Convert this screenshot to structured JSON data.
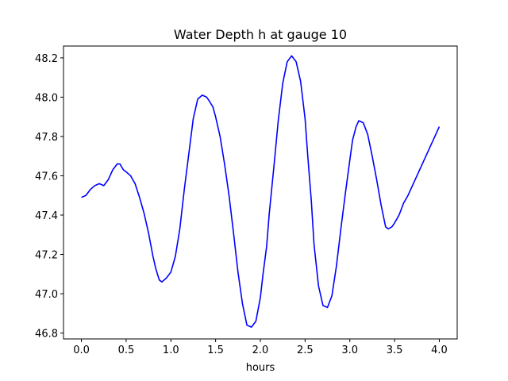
{
  "chart_data": {
    "type": "line",
    "title": "Water Depth h at gauge 10",
    "xlabel": "hours",
    "ylabel": "",
    "xlim": [
      -0.2,
      4.2
    ],
    "ylim": [
      46.77,
      48.26
    ],
    "xticks": [
      0.0,
      0.5,
      1.0,
      1.5,
      2.0,
      2.5,
      3.0,
      3.5,
      4.0
    ],
    "xtick_labels": [
      "0.0",
      "0.5",
      "1.0",
      "1.5",
      "2.0",
      "2.5",
      "3.0",
      "3.5",
      "4.0"
    ],
    "yticks": [
      46.8,
      47.0,
      47.2,
      47.4,
      47.6,
      47.8,
      48.0,
      48.2
    ],
    "ytick_labels": [
      "46.8",
      "47.0",
      "47.2",
      "47.4",
      "47.6",
      "47.8",
      "48.0",
      "48.2"
    ],
    "grid": false,
    "series": [
      {
        "color": "#0000ff",
        "x": [
          0.0,
          0.05,
          0.1,
          0.15,
          0.2,
          0.25,
          0.3,
          0.35,
          0.4,
          0.43,
          0.47,
          0.5,
          0.55,
          0.6,
          0.65,
          0.7,
          0.75,
          0.8,
          0.83,
          0.87,
          0.9,
          0.95,
          1.0,
          1.05,
          1.1,
          1.15,
          1.2,
          1.25,
          1.3,
          1.35,
          1.4,
          1.43,
          1.47,
          1.5,
          1.55,
          1.6,
          1.65,
          1.7,
          1.75,
          1.8,
          1.85,
          1.9,
          1.95,
          2.0,
          2.03,
          2.07,
          2.1,
          2.15,
          2.2,
          2.25,
          2.3,
          2.35,
          2.4,
          2.45,
          2.5,
          2.53,
          2.57,
          2.6,
          2.65,
          2.7,
          2.75,
          2.8,
          2.85,
          2.9,
          2.95,
          3.0,
          3.03,
          3.07,
          3.1,
          3.15,
          3.2,
          3.25,
          3.3,
          3.35,
          3.4,
          3.43,
          3.47,
          3.5,
          3.55,
          3.6,
          3.65,
          3.7,
          3.75,
          3.8,
          3.85,
          3.9,
          3.95,
          4.0
        ],
        "y": [
          47.49,
          47.5,
          47.53,
          47.55,
          47.56,
          47.55,
          47.58,
          47.63,
          47.66,
          47.66,
          47.63,
          47.62,
          47.6,
          47.56,
          47.49,
          47.41,
          47.31,
          47.19,
          47.13,
          47.07,
          47.06,
          47.08,
          47.11,
          47.19,
          47.33,
          47.53,
          47.71,
          47.89,
          47.99,
          48.01,
          48.0,
          47.98,
          47.95,
          47.9,
          47.8,
          47.66,
          47.5,
          47.31,
          47.11,
          46.95,
          46.84,
          46.83,
          46.86,
          46.98,
          47.1,
          47.24,
          47.41,
          47.64,
          47.88,
          48.07,
          48.18,
          48.21,
          48.18,
          48.08,
          47.89,
          47.7,
          47.47,
          47.25,
          47.04,
          46.94,
          46.93,
          46.99,
          47.14,
          47.33,
          47.51,
          47.68,
          47.78,
          47.85,
          47.88,
          47.87,
          47.81,
          47.7,
          47.58,
          47.45,
          47.34,
          47.33,
          47.34,
          47.36,
          47.4,
          47.46,
          47.5,
          47.55,
          47.6,
          47.65,
          47.7,
          47.75,
          47.8,
          47.85
        ]
      }
    ]
  }
}
